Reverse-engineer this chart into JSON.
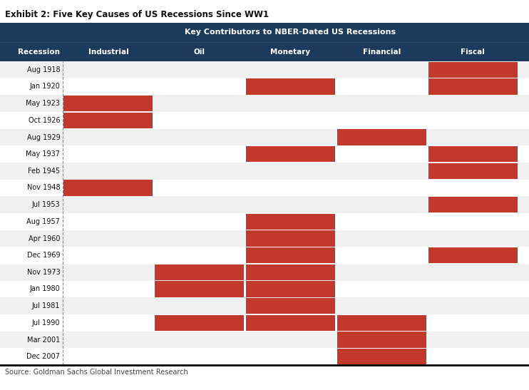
{
  "title_exhibit": "Exhibit 2: Five Key Causes of US Recessions Since WW1",
  "header_title": "Key Contributors to NBER-Dated US Recessions",
  "source": "Source: Goldman Sachs Global Investment Research",
  "header_bg": "#1b3a5c",
  "header_text": "#ffffff",
  "red_color": "#c0392b",
  "row_alt_colors": [
    "#f0f0f0",
    "#ffffff"
  ],
  "col_header": "Recession",
  "columns": [
    "Industrial",
    "Oil",
    "Monetary",
    "Financial",
    "Fiscal"
  ],
  "recessions": [
    "Aug 1918",
    "Jan 1920",
    "May 1923",
    "Oct 1926",
    "Aug 1929",
    "May 1937",
    "Feb 1945",
    "Nov 1948",
    "Jul 1953",
    "Aug 1957",
    "Apr 1960",
    "Dec 1969",
    "Nov 1973",
    "Jan 1980",
    "Jul 1981",
    "Jul 1990",
    "Mar 2001",
    "Dec 2007"
  ],
  "data": {
    "Aug 1918": [
      0,
      0,
      0,
      0,
      1
    ],
    "Jan 1920": [
      0,
      0,
      1,
      0,
      1
    ],
    "May 1923": [
      1,
      0,
      0,
      0,
      0
    ],
    "Oct 1926": [
      1,
      0,
      0,
      0,
      0
    ],
    "Aug 1929": [
      0,
      0,
      0,
      1,
      0
    ],
    "May 1937": [
      0,
      0,
      1,
      0,
      1
    ],
    "Feb 1945": [
      0,
      0,
      0,
      0,
      1
    ],
    "Nov 1948": [
      1,
      0,
      0,
      0,
      0
    ],
    "Jul 1953": [
      0,
      0,
      0,
      0,
      1
    ],
    "Aug 1957": [
      0,
      0,
      1,
      0,
      0
    ],
    "Apr 1960": [
      0,
      0,
      1,
      0,
      0
    ],
    "Dec 1969": [
      0,
      0,
      1,
      0,
      1
    ],
    "Nov 1973": [
      0,
      1,
      1,
      0,
      0
    ],
    "Jan 1980": [
      0,
      1,
      1,
      0,
      0
    ],
    "Jul 1981": [
      0,
      0,
      1,
      0,
      0
    ],
    "Jul 1990": [
      0,
      1,
      1,
      1,
      0
    ],
    "Mar 2001": [
      0,
      0,
      0,
      1,
      0
    ],
    "Dec 2007": [
      0,
      0,
      0,
      1,
      0
    ]
  },
  "figsize": [
    7.42,
    5.47
  ],
  "dpi": 100
}
